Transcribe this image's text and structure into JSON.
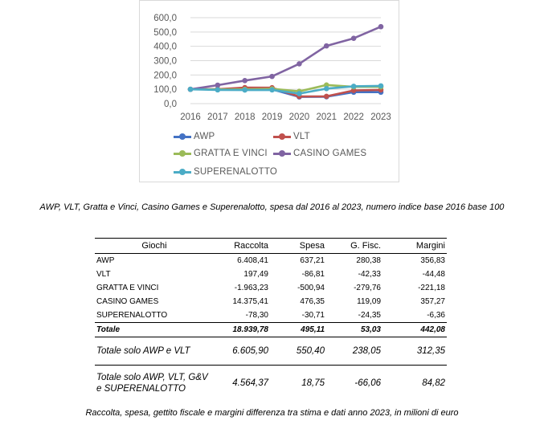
{
  "chart_data": {
    "type": "line",
    "title": "",
    "xlabel": "",
    "ylabel": "",
    "x": [
      "2016",
      "2017",
      "2018",
      "2019",
      "2020",
      "2021",
      "2022",
      "2023"
    ],
    "yticks": [
      "0,0",
      "100,0",
      "200,0",
      "300,0",
      "400,0",
      "500,0",
      "600,0"
    ],
    "ylim": [
      0,
      600
    ],
    "grid": true,
    "legend_position": "bottom",
    "series": [
      {
        "name": "AWP",
        "color": "#4472c4",
        "values": [
          100,
          100,
          99,
          100,
          47,
          48,
          80,
          80
        ]
      },
      {
        "name": "VLT",
        "color": "#c0504d",
        "values": [
          100,
          101,
          112,
          111,
          50,
          51,
          92,
          96
        ]
      },
      {
        "name": "GRATTA E VINCI",
        "color": "#9bbb59",
        "values": [
          100,
          99,
          100,
          103,
          86,
          130,
          117,
          117
        ]
      },
      {
        "name": "CASINO GAMES",
        "color": "#8064a2",
        "values": [
          100,
          129,
          161,
          190,
          278,
          403,
          456,
          537
        ]
      },
      {
        "name": "SUPERENALOTTO",
        "color": "#4bacc6",
        "values": [
          100,
          96,
          95,
          96,
          70,
          105,
          121,
          124
        ]
      }
    ]
  },
  "captions": {
    "chart": "AWP, VLT, Gratta e Vinci, Casino Games e Superenalotto, spesa dal 2016 al 2023, numero indice base 2016 base 100",
    "table": "Raccolta, spesa, gettito fiscale e margini differenza tra stima e dati anno 2023, in milioni di euro"
  },
  "table": {
    "headers": [
      "Giochi",
      "Raccolta",
      "Spesa",
      "G. Fisc.",
      "Margini"
    ],
    "rows": [
      [
        "AWP",
        "6.408,41",
        "637,21",
        "280,38",
        "356,83"
      ],
      [
        "VLT",
        "197,49",
        "-86,81",
        "-42,33",
        "-44,48"
      ],
      [
        "GRATTA E VINCI",
        "-1.963,23",
        "-500,94",
        "-279,76",
        "-221,18"
      ],
      [
        "CASINO GAMES",
        "14.375,41",
        "476,35",
        "119,09",
        "357,27"
      ],
      [
        "SUPERENALOTTO",
        "-78,30",
        "-30,71",
        "-24,35",
        "-6,36"
      ]
    ],
    "total": [
      "Totale",
      "18.939,78",
      "495,11",
      "53,03",
      "442,08"
    ],
    "total_awp_vlt": [
      "Totale solo AWP e VLT",
      "6.605,90",
      "550,40",
      "238,05",
      "312,35"
    ],
    "total_awp_vlt_gv_se": [
      "Totale solo AWP, VLT, G&V e SUPERENALOTTO",
      "4.564,37",
      "18,75",
      "-66,06",
      "84,82"
    ]
  }
}
